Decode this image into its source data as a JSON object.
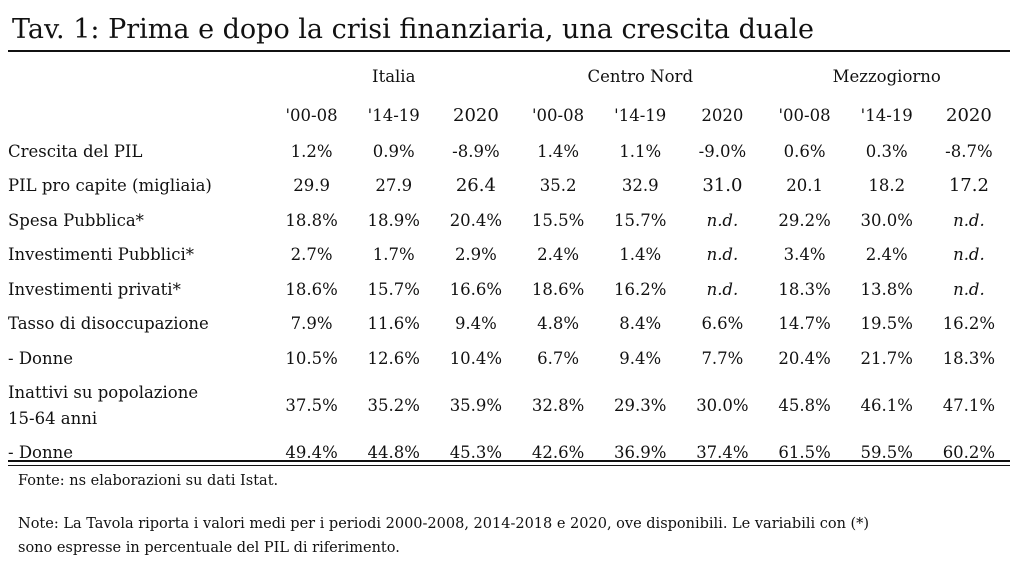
{
  "title": "Tav. 1: Prima e dopo la crisi finanziaria, una crescita duale",
  "groups": [
    "Italia",
    "Centro Nord",
    "Mezzogiorno"
  ],
  "periods": [
    "'00-08",
    "'14-19",
    "2020",
    "'00-08",
    "'14-19",
    "2020",
    "'00-08",
    "'14-19",
    "2020"
  ],
  "rows": [
    {
      "label": "Crescita del PIL",
      "values": [
        "1.2%",
        "0.9%",
        "-8.9%",
        "1.4%",
        "1.1%",
        "-9.0%",
        "0.6%",
        "0.3%",
        "-8.7%"
      ]
    },
    {
      "label": "PIL pro capite (migliaia)",
      "values": [
        "29.9",
        "27.9",
        "26.4",
        "35.2",
        "32.9",
        "31.0",
        "20.1",
        "18.2",
        "17.2"
      ]
    },
    {
      "label": "Spesa Pubblica*",
      "values": [
        "18.8%",
        "18.9%",
        "20.4%",
        "15.5%",
        "15.7%",
        "n.d.",
        "29.2%",
        "30.0%",
        "n.d."
      ]
    },
    {
      "label": "Investimenti Pubblici*",
      "values": [
        "2.7%",
        "1.7%",
        "2.9%",
        "2.4%",
        "1.4%",
        "n.d.",
        "3.4%",
        "2.4%",
        "n.d."
      ]
    },
    {
      "label": "Investimenti privati*",
      "values": [
        "18.6%",
        "15.7%",
        "16.6%",
        "18.6%",
        "16.2%",
        "n.d.",
        "18.3%",
        "13.8%",
        "n.d."
      ]
    },
    {
      "label": "Tasso di disoccupazione",
      "values": [
        "7.9%",
        "11.6%",
        "9.4%",
        "4.8%",
        "8.4%",
        "6.6%",
        "14.7%",
        "19.5%",
        "16.2%"
      ]
    },
    {
      "label": "- Donne",
      "values": [
        "10.5%",
        "12.6%",
        "10.4%",
        "6.7%",
        "9.4%",
        "7.7%",
        "20.4%",
        "21.7%",
        "18.3%"
      ]
    },
    {
      "label_line1": "Inattivi su popolazione",
      "label_line2": "15-64 anni",
      "values": [
        "37.5%",
        "35.2%",
        "35.9%",
        "32.8%",
        "29.3%",
        "30.0%",
        "45.8%",
        "46.1%",
        "47.1%"
      ]
    },
    {
      "label": "- Donne",
      "values": [
        "49.4%",
        "44.8%",
        "45.3%",
        "42.6%",
        "36.9%",
        "37.4%",
        "61.5%",
        "59.5%",
        "60.2%"
      ]
    }
  ],
  "fonte": "Fonte: ns elaborazioni su dati Istat.",
  "note_line1": "Note: La Tavola riporta i valori medi per i periodi 2000-2008, 2014-2018 e 2020, ove disponibili. Le variabili con (*)",
  "note_line2": "sono espresse in percentuale del PIL di riferimento."
}
